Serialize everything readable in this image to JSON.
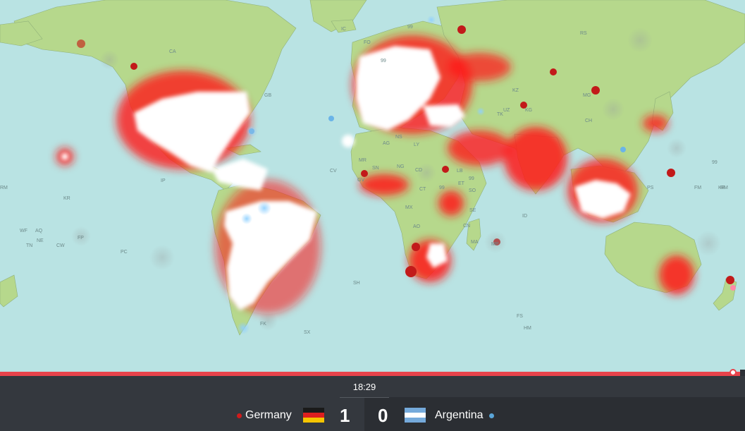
{
  "map": {
    "colors": {
      "ocean": "#b9e3e3",
      "land": "#b6d88c",
      "border": "#8fb07a",
      "home_hot": "#ff1a1a",
      "away_hot": "#6ab4e8",
      "peak": "#ffffff"
    },
    "country_codes": [
      "CA",
      "GB",
      "IC",
      "FO",
      "RS",
      "KZ",
      "UZ",
      "TK",
      "KG",
      "MG",
      "CH",
      "KR",
      "AG",
      "MR",
      "LY",
      "CV",
      "GV",
      "NG",
      "CT",
      "CD",
      "ET",
      "SO",
      "IP",
      "99",
      "SE",
      "ID",
      "FM",
      "RM",
      "PS",
      "MP",
      "MA",
      "CN",
      "AO",
      "SH",
      "FK",
      "SX",
      "FS",
      "HM",
      "WF",
      "AQ",
      "TN",
      "NE",
      "CW",
      "FP",
      "PC",
      "KR",
      "MX",
      "LB",
      "NS",
      "SN",
      "RM",
      "99",
      "99",
      "99",
      "99"
    ]
  },
  "match": {
    "clock": "18:29",
    "home": {
      "name": "Germany",
      "score": "1",
      "color": "#d11b1b"
    },
    "away": {
      "name": "Argentina",
      "score": "0",
      "color": "#5aa5d8"
    }
  },
  "timeline": {
    "progress": 0.985
  }
}
